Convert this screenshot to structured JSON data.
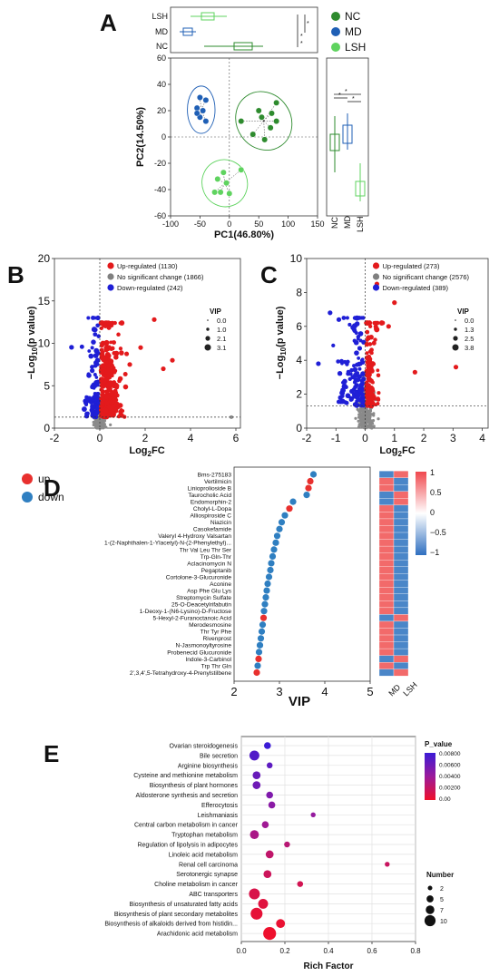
{
  "panels": {
    "A": {
      "label": "A",
      "legend": [
        {
          "name": "NC",
          "color": "#2e8b2e"
        },
        {
          "name": "MD",
          "color": "#1f5fb5"
        },
        {
          "name": "LSH",
          "color": "#5fd35f"
        }
      ],
      "top_groups": [
        "LSH",
        "MD",
        "NC"
      ],
      "xlabel": "PC1(46.80%)",
      "ylabel": "PC2(14.50%)",
      "xticks": [
        -100,
        -50,
        0,
        50,
        100,
        150
      ],
      "yticks": [
        60,
        40,
        20,
        0,
        -20,
        -40,
        -60
      ],
      "side_groups": [
        "NC",
        "MD",
        "LSH"
      ],
      "chart_data": {
        "type": "scatter",
        "xlabel": "PC1(46.80%)",
        "ylabel": "PC2(14.50%)",
        "xlim": [
          -100,
          150
        ],
        "ylim": [
          -60,
          60
        ],
        "series": [
          {
            "name": "NC",
            "color": "#2e8b2e",
            "points": [
              [
                20,
                12
              ],
              [
                40,
                2
              ],
              [
                60,
                -2
              ],
              [
                80,
                12
              ],
              [
                72,
                18
              ],
              [
                55,
                15
              ],
              [
                50,
                20
              ],
              [
                80,
                26
              ],
              [
                70,
                7
              ]
            ]
          },
          {
            "name": "MD",
            "color": "#1f5fb5",
            "points": [
              [
                -50,
                30
              ],
              [
                -40,
                28
              ],
              [
                -55,
                22
              ],
              [
                -45,
                20
              ],
              [
                -50,
                15
              ],
              [
                -40,
                12
              ],
              [
                -55,
                18
              ]
            ]
          },
          {
            "name": "LSH",
            "color": "#5fd35f",
            "points": [
              [
                -20,
                -32
              ],
              [
                -10,
                -27
              ],
              [
                -25,
                -42
              ],
              [
                -15,
                -42
              ],
              [
                0,
                -43
              ],
              [
                20,
                -25
              ],
              [
                -5,
                -35
              ]
            ]
          }
        ]
      }
    },
    "B": {
      "label": "B",
      "legend": [
        {
          "name": "Up-regulated (1130)",
          "color": "#e31a1c"
        },
        {
          "name": "No significant change (1866)",
          "color": "#808080"
        },
        {
          "name": "Down-regulated (242)",
          "color": "#1f1fd6"
        }
      ],
      "vip_title": "VIP",
      "vip_values": [
        "0.0",
        "1.0",
        "2.1",
        "3.1"
      ],
      "xlabel": "Log2FC",
      "ylabel": "−Log10(p value)",
      "xticks": [
        -2,
        0,
        2,
        4,
        6
      ],
      "yticks": [
        0,
        5,
        10,
        15,
        20
      ],
      "chart_data": {
        "type": "scatter",
        "xlabel": "Log2FC",
        "ylabel": "−Log10(p value)",
        "xlim": [
          -2,
          6.2
        ],
        "ylim": [
          0,
          20
        ],
        "threshold_y": 1.3,
        "counts": {
          "up": 1130,
          "ns": 1866,
          "down": 242
        },
        "outliers_up": [
          [
            2.4,
            12.8
          ],
          [
            3.2,
            8.0
          ],
          [
            2.8,
            7.0
          ],
          [
            1.8,
            9.5
          ]
        ],
        "outliers_ns": [
          [
            5.8,
            1.3
          ]
        ]
      }
    },
    "C": {
      "label": "C",
      "legend": [
        {
          "name": "Up-regulated (273)",
          "color": "#e31a1c"
        },
        {
          "name": "No significant change (2576)",
          "color": "#808080"
        },
        {
          "name": "Down-regulated (389)",
          "color": "#1f1fd6"
        }
      ],
      "vip_title": "VIP",
      "vip_values": [
        "0.0",
        "1.3",
        "2.5",
        "3.8"
      ],
      "xlabel": "Log2FC",
      "ylabel": "−Log10(p value)",
      "xticks": [
        -2,
        -1,
        0,
        1,
        2,
        3,
        4
      ],
      "yticks": [
        0,
        2,
        4,
        6,
        8,
        10
      ],
      "chart_data": {
        "type": "scatter",
        "xlabel": "Log2FC",
        "ylabel": "−Log10(p value)",
        "xlim": [
          -2,
          4.2
        ],
        "ylim": [
          0,
          10
        ],
        "threshold_y": 1.3,
        "counts": {
          "up": 273,
          "ns": 2576,
          "down": 389
        },
        "outliers_up": [
          [
            1.0,
            7.4
          ],
          [
            3.1,
            3.6
          ],
          [
            1.7,
            3.3
          ],
          [
            0.8,
            6.0
          ],
          [
            0.4,
            8.5
          ]
        ],
        "outliers_down": [
          [
            -1.6,
            3.8
          ],
          [
            -1.2,
            6.8
          ],
          [
            -0.9,
            6.4
          ]
        ]
      }
    },
    "D": {
      "label": "D",
      "legend": [
        {
          "name": "up",
          "color": "#e8302e"
        },
        {
          "name": "down",
          "color": "#2f7fc1"
        }
      ],
      "xlabel": "VIP",
      "xticks": [
        2,
        3,
        4,
        5
      ],
      "heat_cols": [
        "MD",
        "LSH"
      ],
      "heat_legend": [
        "1",
        "0.5",
        "0",
        "−0.5",
        "−1"
      ],
      "chart_data": {
        "type": "scatter",
        "xlabel": "VIP",
        "xlim": [
          2,
          5
        ],
        "items": [
          {
            "name": "Bms-275183",
            "vip": 3.75,
            "dir": "down",
            "md": -0.6,
            "lsh": 0.6
          },
          {
            "name": "Vertilmicin",
            "vip": 3.68,
            "dir": "up",
            "md": 0.6,
            "lsh": -0.6
          },
          {
            "name": "Linioprolioside B",
            "vip": 3.64,
            "dir": "up",
            "md": 0.6,
            "lsh": -0.6
          },
          {
            "name": "Taurocholic Acid",
            "vip": 3.6,
            "dir": "down",
            "md": -0.6,
            "lsh": 0.6
          },
          {
            "name": "Endomorphin-2",
            "vip": 3.3,
            "dir": "down",
            "md": -0.6,
            "lsh": 0.6
          },
          {
            "name": "Cholyl-L-Dopa",
            "vip": 3.22,
            "dir": "up",
            "md": 0.6,
            "lsh": -0.6
          },
          {
            "name": "Alliospiroside C",
            "vip": 3.12,
            "dir": "down",
            "md": 0.6,
            "lsh": -0.6
          },
          {
            "name": "Niazicin",
            "vip": 3.05,
            "dir": "down",
            "md": 0.6,
            "lsh": -0.6
          },
          {
            "name": "Casokefamide",
            "vip": 3.0,
            "dir": "down",
            "md": 0.6,
            "lsh": -0.6
          },
          {
            "name": "Valeryl 4-Hydroxy Valsartan",
            "vip": 2.95,
            "dir": "down",
            "md": 0.6,
            "lsh": -0.6
          },
          {
            "name": "1-(2-Naphthalen-1-Ylacetyl)-N-(2-Phenylethyl)...",
            "vip": 2.92,
            "dir": "down",
            "md": 0.6,
            "lsh": -0.6
          },
          {
            "name": "Thr Val Leu Thr Ser",
            "vip": 2.88,
            "dir": "down",
            "md": 0.6,
            "lsh": -0.6
          },
          {
            "name": "Trp-Gln-Thr",
            "vip": 2.85,
            "dir": "down",
            "md": 0.6,
            "lsh": -0.6
          },
          {
            "name": "Aclacinomycin N",
            "vip": 2.82,
            "dir": "down",
            "md": 0.6,
            "lsh": -0.6
          },
          {
            "name": "Pegaptanib",
            "vip": 2.8,
            "dir": "down",
            "md": 0.6,
            "lsh": -0.6
          },
          {
            "name": "Cortolone-3-Glucuronide",
            "vip": 2.77,
            "dir": "down",
            "md": 0.6,
            "lsh": -0.6
          },
          {
            "name": "Aconine",
            "vip": 2.74,
            "dir": "down",
            "md": 0.6,
            "lsh": -0.6
          },
          {
            "name": "Asp Phe Glu Lys",
            "vip": 2.72,
            "dir": "down",
            "md": 0.6,
            "lsh": -0.6
          },
          {
            "name": "Streptomycin Sulfate",
            "vip": 2.7,
            "dir": "down",
            "md": 0.6,
            "lsh": -0.6
          },
          {
            "name": "25-O-Deacetylrifabutin",
            "vip": 2.68,
            "dir": "down",
            "md": 0.6,
            "lsh": -0.6
          },
          {
            "name": "1-Deoxy-1-(N6-Lysino)-D-Fructose",
            "vip": 2.66,
            "dir": "down",
            "md": 0.6,
            "lsh": -0.6
          },
          {
            "name": "5-Hexyl-2-Furanoctanoic Acid",
            "vip": 2.65,
            "dir": "up",
            "md": -0.6,
            "lsh": 0.6
          },
          {
            "name": "Merodesmosine",
            "vip": 2.63,
            "dir": "down",
            "md": 0.6,
            "lsh": -0.6
          },
          {
            "name": "Thr Tyr Phe",
            "vip": 2.61,
            "dir": "down",
            "md": 0.6,
            "lsh": -0.6
          },
          {
            "name": "Rivenprost",
            "vip": 2.59,
            "dir": "down",
            "md": 0.6,
            "lsh": -0.6
          },
          {
            "name": "N-Jasmonoyltyrosine",
            "vip": 2.57,
            "dir": "down",
            "md": 0.6,
            "lsh": -0.6
          },
          {
            "name": "Probenecid Glucuronide",
            "vip": 2.55,
            "dir": "down",
            "md": 0.6,
            "lsh": -0.6
          },
          {
            "name": "Indole-3-Carbinol",
            "vip": 2.54,
            "dir": "up",
            "md": -0.6,
            "lsh": 0.6
          },
          {
            "name": "Trp Thr Gln",
            "vip": 2.52,
            "dir": "down",
            "md": 0.6,
            "lsh": -0.6
          },
          {
            "name": "2',3,4',5-Tetrahydroxy-4-Prenylstilbene",
            "vip": 2.5,
            "dir": "up",
            "md": -0.6,
            "lsh": 0.6
          }
        ]
      }
    },
    "E": {
      "label": "E",
      "xlabel": "Rich Factor",
      "xticks": [
        0.0,
        0.2,
        0.4,
        0.6,
        0.8
      ],
      "pvalue_title": "P_value",
      "pvalue_ticks": [
        "0.00800",
        "0.00600",
        "0.00400",
        "0.00200",
        "0.00"
      ],
      "number_title": "Number",
      "number_ticks": [
        "2",
        "5",
        "7",
        "10"
      ],
      "chart_data": {
        "type": "scatter",
        "xlabel": "Rich Factor",
        "xlim": [
          0,
          0.8
        ],
        "pathways": [
          {
            "name": "Ovarian steroidogenesis",
            "rich": 0.12,
            "number": 4,
            "p": 0.0085
          },
          {
            "name": "Bile secretion",
            "rich": 0.06,
            "number": 7,
            "p": 0.0075
          },
          {
            "name": "Arginine biosynthesis",
            "rich": 0.13,
            "number": 3,
            "p": 0.007
          },
          {
            "name": "Cysteine and methionine metabolism",
            "rich": 0.07,
            "number": 5,
            "p": 0.0065
          },
          {
            "name": "Biosynthesis of plant hormones",
            "rich": 0.07,
            "number": 5,
            "p": 0.0062
          },
          {
            "name": "Aldosterone synthesis and secretion",
            "rich": 0.13,
            "number": 4,
            "p": 0.0055
          },
          {
            "name": "Efferocytosis",
            "rich": 0.14,
            "number": 4,
            "p": 0.005
          },
          {
            "name": "Leishmaniasis",
            "rich": 0.33,
            "number": 2,
            "p": 0.0045
          },
          {
            "name": "Central carbon metabolism in cancer",
            "rich": 0.11,
            "number": 4,
            "p": 0.004
          },
          {
            "name": "Tryptophan metabolism",
            "rich": 0.06,
            "number": 6,
            "p": 0.0035
          },
          {
            "name": "Regulation of lipolysis in adipocytes",
            "rich": 0.21,
            "number": 3,
            "p": 0.0028
          },
          {
            "name": "Linoleic acid metabolism",
            "rich": 0.13,
            "number": 5,
            "p": 0.0024
          },
          {
            "name": "Renal cell carcinoma",
            "rich": 0.67,
            "number": 2,
            "p": 0.002
          },
          {
            "name": "Serotonergic synapse",
            "rich": 0.12,
            "number": 5,
            "p": 0.0018
          },
          {
            "name": "Choline metabolism in cancer",
            "rich": 0.27,
            "number": 3,
            "p": 0.0015
          },
          {
            "name": "ABC transporters",
            "rich": 0.06,
            "number": 8,
            "p": 0.0012
          },
          {
            "name": "Biosynthesis of unsaturated fatty acids",
            "rich": 0.1,
            "number": 7,
            "p": 0.0008
          },
          {
            "name": "Biosynthesis of plant secondary metabolites",
            "rich": 0.07,
            "number": 9,
            "p": 0.0005
          },
          {
            "name": "Biosynthesis of alkaloids derived from histidin...",
            "rich": 0.18,
            "number": 6,
            "p": 0.0003
          },
          {
            "name": "Arachidonic acid metabolism",
            "rich": 0.13,
            "number": 10,
            "p": 0.0001
          }
        ]
      }
    }
  }
}
